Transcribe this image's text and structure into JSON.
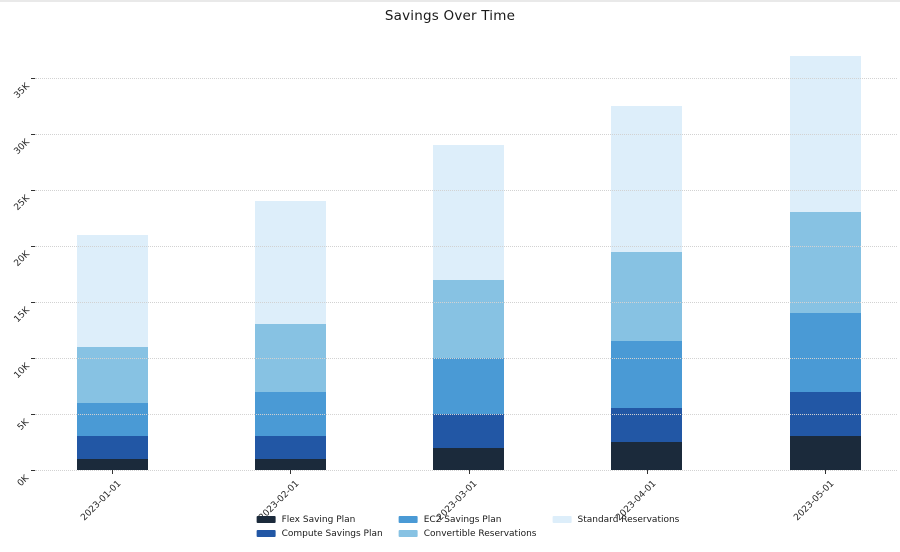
{
  "chart_data": {
    "type": "bar",
    "stacked": true,
    "title": "Savings Over Time",
    "categories": [
      "2023-01-01",
      "2023-02-01",
      "2023-03-01",
      "2023-04-01",
      "2023-05-01"
    ],
    "series": [
      {
        "name": "Flex Saving Plan",
        "color": "#1b2a3b",
        "values": [
          1000,
          1000,
          2000,
          2500,
          3000
        ]
      },
      {
        "name": "Compute Savings Plan",
        "color": "#2257a5",
        "values": [
          2000,
          2000,
          3000,
          3000,
          4000
        ]
      },
      {
        "name": "EC2 Savings Plan",
        "color": "#4a9ad5",
        "values": [
          3000,
          4000,
          5000,
          6000,
          7000
        ]
      },
      {
        "name": "Convertible Reservations",
        "color": "#87c2e3",
        "values": [
          5000,
          6000,
          7000,
          8000,
          9000
        ]
      },
      {
        "name": "Standard Reservations",
        "color": "#ddeefa",
        "values": [
          10000,
          11000,
          12000,
          13000,
          14000
        ]
      }
    ],
    "bar_totals": [
      21000,
      24000,
      29000,
      32500,
      37000
    ],
    "ylim": [
      0,
      37500
    ],
    "yticks": [
      {
        "value": 0,
        "label": "0K"
      },
      {
        "value": 5000,
        "label": "5K"
      },
      {
        "value": 10000,
        "label": "10K"
      },
      {
        "value": 15000,
        "label": "15K"
      },
      {
        "value": 20000,
        "label": "20K"
      },
      {
        "value": 25000,
        "label": "25K"
      },
      {
        "value": 30000,
        "label": "30K"
      },
      {
        "value": 35000,
        "label": "35K"
      }
    ],
    "grid": "horizontal-dotted",
    "grid_color": "#d2d2d2",
    "tick_label_color": "#262626",
    "tick_label_rotation_deg": 45,
    "legend_position": "bottom-center",
    "legend_columns": 3
  }
}
